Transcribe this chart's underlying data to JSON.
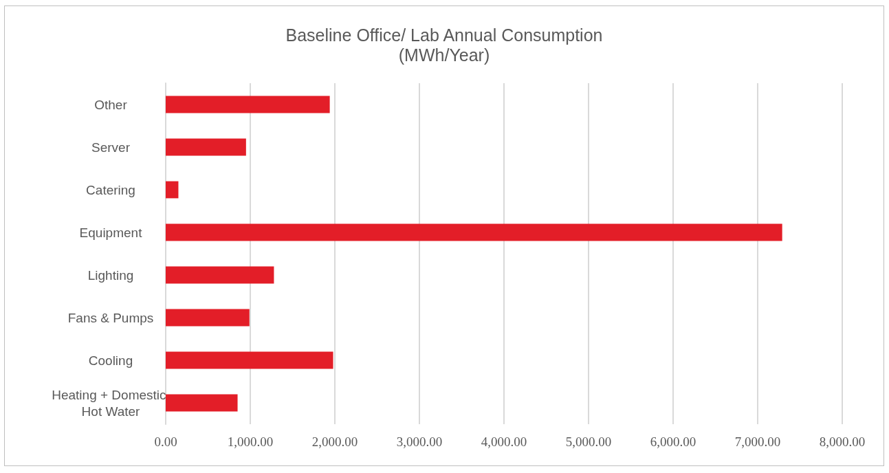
{
  "chart_data": {
    "type": "bar",
    "orientation": "horizontal",
    "title": "Baseline Office/ Lab Annual Consumption\n(MWh/Year)",
    "categories": [
      "Other",
      "Server",
      "Catering",
      "Equipment",
      "Lighting",
      "Fans & Pumps",
      "Cooling",
      "Heating + Domestic Hot Water"
    ],
    "values": [
      1940,
      950,
      150,
      7290,
      1280,
      990,
      1980,
      850
    ],
    "color": "#e31e28",
    "xlim": [
      0,
      8000
    ],
    "xticks": [
      {
        "value": 0,
        "label": "0.00"
      },
      {
        "value": 1000,
        "label": "1,000.00"
      },
      {
        "value": 2000,
        "label": "2,000.00"
      },
      {
        "value": 3000,
        "label": "3,000.00"
      },
      {
        "value": 4000,
        "label": "4,000.00"
      },
      {
        "value": 5000,
        "label": "5,000.00"
      },
      {
        "value": 6000,
        "label": "6,000.00"
      },
      {
        "value": 7000,
        "label": "7,000.00"
      },
      {
        "value": 8000,
        "label": "8,000.00"
      }
    ],
    "grid": "x"
  }
}
